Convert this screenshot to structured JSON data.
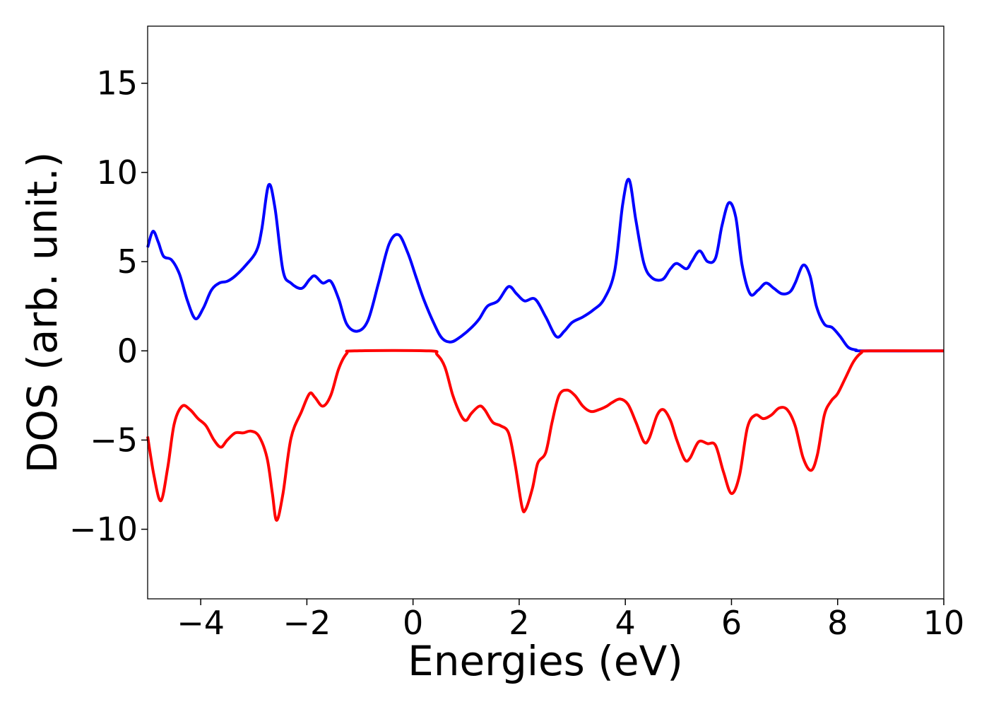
{
  "chart_data": {
    "type": "line",
    "title": "",
    "xlabel": "Energies (eV)",
    "ylabel": "DOS (arb. unit.)",
    "xlim": [
      -5,
      10
    ],
    "ylim": [
      -13.9,
      18.2
    ],
    "xticks": [
      -4,
      -2,
      0,
      2,
      4,
      6,
      8,
      10
    ],
    "yticks": [
      -10,
      -5,
      0,
      5,
      10,
      15
    ],
    "grid": false,
    "legend": "none",
    "series": [
      {
        "color": "#0000ff",
        "points": [
          [
            -5.0,
            5.8
          ],
          [
            -4.9,
            6.7
          ],
          [
            -4.8,
            6.1
          ],
          [
            -4.7,
            5.3
          ],
          [
            -4.55,
            5.1
          ],
          [
            -4.4,
            4.3
          ],
          [
            -4.25,
            2.8
          ],
          [
            -4.1,
            1.8
          ],
          [
            -3.95,
            2.4
          ],
          [
            -3.8,
            3.4
          ],
          [
            -3.65,
            3.8
          ],
          [
            -3.5,
            3.9
          ],
          [
            -3.35,
            4.2
          ],
          [
            -3.15,
            4.8
          ],
          [
            -2.95,
            5.6
          ],
          [
            -2.85,
            6.8
          ],
          [
            -2.72,
            9.3
          ],
          [
            -2.6,
            8.0
          ],
          [
            -2.45,
            4.5
          ],
          [
            -2.3,
            3.8
          ],
          [
            -2.1,
            3.5
          ],
          [
            -1.95,
            4.0
          ],
          [
            -1.85,
            4.2
          ],
          [
            -1.7,
            3.8
          ],
          [
            -1.55,
            3.9
          ],
          [
            -1.4,
            2.9
          ],
          [
            -1.25,
            1.5
          ],
          [
            -1.05,
            1.1
          ],
          [
            -0.85,
            1.7
          ],
          [
            -0.65,
            3.8
          ],
          [
            -0.45,
            6.0
          ],
          [
            -0.27,
            6.5
          ],
          [
            -0.1,
            5.5
          ],
          [
            0.05,
            4.2
          ],
          [
            0.2,
            2.9
          ],
          [
            0.4,
            1.5
          ],
          [
            0.55,
            0.7
          ],
          [
            0.72,
            0.5
          ],
          [
            0.9,
            0.8
          ],
          [
            1.1,
            1.3
          ],
          [
            1.25,
            1.8
          ],
          [
            1.4,
            2.5
          ],
          [
            1.6,
            2.8
          ],
          [
            1.8,
            3.6
          ],
          [
            1.95,
            3.2
          ],
          [
            2.1,
            2.8
          ],
          [
            2.3,
            2.9
          ],
          [
            2.5,
            1.9
          ],
          [
            2.7,
            0.8
          ],
          [
            2.85,
            1.1
          ],
          [
            3.0,
            1.6
          ],
          [
            3.2,
            1.9
          ],
          [
            3.4,
            2.3
          ],
          [
            3.6,
            2.9
          ],
          [
            3.8,
            4.5
          ],
          [
            3.95,
            8.2
          ],
          [
            4.07,
            9.6
          ],
          [
            4.2,
            7.3
          ],
          [
            4.35,
            4.9
          ],
          [
            4.5,
            4.1
          ],
          [
            4.7,
            4.0
          ],
          [
            4.85,
            4.6
          ],
          [
            4.97,
            4.9
          ],
          [
            5.15,
            4.6
          ],
          [
            5.25,
            5.0
          ],
          [
            5.4,
            5.6
          ],
          [
            5.55,
            5.0
          ],
          [
            5.7,
            5.2
          ],
          [
            5.82,
            7.0
          ],
          [
            5.95,
            8.3
          ],
          [
            6.08,
            7.5
          ],
          [
            6.2,
            4.8
          ],
          [
            6.35,
            3.2
          ],
          [
            6.5,
            3.4
          ],
          [
            6.65,
            3.8
          ],
          [
            6.8,
            3.5
          ],
          [
            6.95,
            3.2
          ],
          [
            7.1,
            3.3
          ],
          [
            7.2,
            3.8
          ],
          [
            7.35,
            4.8
          ],
          [
            7.48,
            4.2
          ],
          [
            7.6,
            2.5
          ],
          [
            7.75,
            1.5
          ],
          [
            7.9,
            1.3
          ],
          [
            8.05,
            0.8
          ],
          [
            8.2,
            0.2
          ],
          [
            8.35,
            0.05
          ],
          [
            8.5,
            0.0
          ],
          [
            10.0,
            0.0
          ]
        ]
      },
      {
        "color": "#ff0000",
        "points": [
          [
            -5.0,
            -4.8
          ],
          [
            -4.88,
            -7.0
          ],
          [
            -4.75,
            -8.4
          ],
          [
            -4.62,
            -6.5
          ],
          [
            -4.5,
            -4.1
          ],
          [
            -4.35,
            -3.1
          ],
          [
            -4.2,
            -3.3
          ],
          [
            -4.05,
            -3.8
          ],
          [
            -3.9,
            -4.2
          ],
          [
            -3.75,
            -5.0
          ],
          [
            -3.62,
            -5.4
          ],
          [
            -3.5,
            -5.0
          ],
          [
            -3.35,
            -4.6
          ],
          [
            -3.2,
            -4.6
          ],
          [
            -3.05,
            -4.5
          ],
          [
            -2.9,
            -4.8
          ],
          [
            -2.75,
            -6.0
          ],
          [
            -2.65,
            -8.0
          ],
          [
            -2.57,
            -9.5
          ],
          [
            -2.45,
            -8.0
          ],
          [
            -2.3,
            -4.9
          ],
          [
            -2.1,
            -3.4
          ],
          [
            -1.95,
            -2.4
          ],
          [
            -1.85,
            -2.6
          ],
          [
            -1.7,
            -3.1
          ],
          [
            -1.55,
            -2.5
          ],
          [
            -1.4,
            -1.0
          ],
          [
            -1.25,
            -0.15
          ],
          [
            -1.1,
            0.0
          ],
          [
            0.3,
            0.0
          ],
          [
            0.45,
            -0.2
          ],
          [
            0.6,
            -0.9
          ],
          [
            0.75,
            -2.5
          ],
          [
            0.9,
            -3.6
          ],
          [
            1.0,
            -3.9
          ],
          [
            1.1,
            -3.5
          ],
          [
            1.25,
            -3.1
          ],
          [
            1.35,
            -3.3
          ],
          [
            1.5,
            -4.0
          ],
          [
            1.65,
            -4.2
          ],
          [
            1.8,
            -4.6
          ],
          [
            1.92,
            -6.3
          ],
          [
            2.05,
            -8.7
          ],
          [
            2.12,
            -8.9
          ],
          [
            2.25,
            -7.7
          ],
          [
            2.35,
            -6.3
          ],
          [
            2.5,
            -5.7
          ],
          [
            2.62,
            -4.0
          ],
          [
            2.75,
            -2.5
          ],
          [
            2.9,
            -2.2
          ],
          [
            3.05,
            -2.5
          ],
          [
            3.2,
            -3.1
          ],
          [
            3.35,
            -3.4
          ],
          [
            3.5,
            -3.3
          ],
          [
            3.65,
            -3.1
          ],
          [
            3.75,
            -2.9
          ],
          [
            3.9,
            -2.7
          ],
          [
            4.05,
            -3.0
          ],
          [
            4.2,
            -4.0
          ],
          [
            4.35,
            -5.1
          ],
          [
            4.45,
            -4.9
          ],
          [
            4.6,
            -3.6
          ],
          [
            4.72,
            -3.3
          ],
          [
            4.85,
            -3.9
          ],
          [
            4.97,
            -5.0
          ],
          [
            5.12,
            -6.1
          ],
          [
            5.22,
            -6.0
          ],
          [
            5.38,
            -5.1
          ],
          [
            5.55,
            -5.2
          ],
          [
            5.7,
            -5.3
          ],
          [
            5.85,
            -6.8
          ],
          [
            6.0,
            -8.0
          ],
          [
            6.15,
            -7.0
          ],
          [
            6.3,
            -4.3
          ],
          [
            6.45,
            -3.6
          ],
          [
            6.6,
            -3.8
          ],
          [
            6.75,
            -3.6
          ],
          [
            6.9,
            -3.2
          ],
          [
            7.05,
            -3.3
          ],
          [
            7.2,
            -4.2
          ],
          [
            7.35,
            -6.0
          ],
          [
            7.5,
            -6.7
          ],
          [
            7.62,
            -5.8
          ],
          [
            7.75,
            -3.6
          ],
          [
            7.88,
            -2.8
          ],
          [
            8.0,
            -2.4
          ],
          [
            8.15,
            -1.5
          ],
          [
            8.3,
            -0.6
          ],
          [
            8.45,
            -0.1
          ],
          [
            8.6,
            0.0
          ],
          [
            10.0,
            0.0
          ]
        ]
      }
    ]
  }
}
